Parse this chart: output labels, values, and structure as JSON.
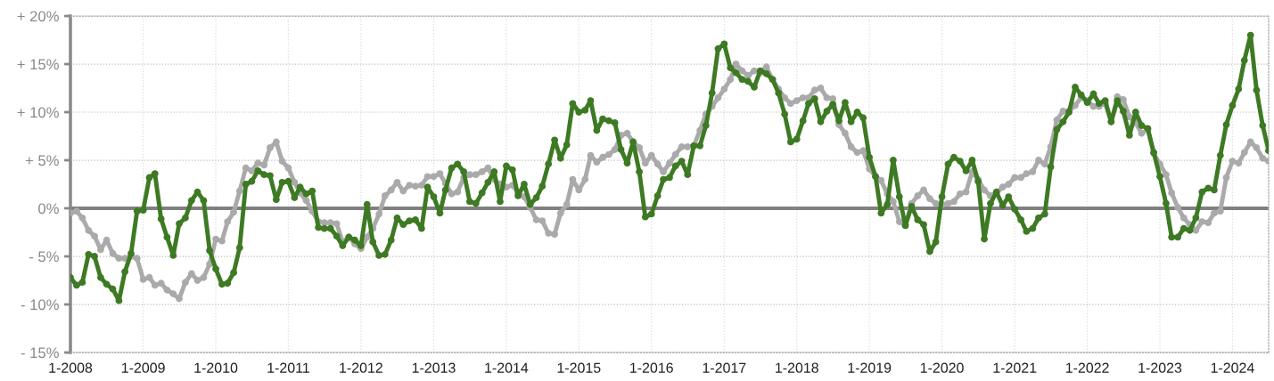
{
  "chart_data": {
    "type": "line",
    "x": [
      "2008-01",
      "2008-02",
      "2008-03",
      "2008-04",
      "2008-05",
      "2008-06",
      "2008-07",
      "2008-08",
      "2008-09",
      "2008-10",
      "2008-11",
      "2008-12",
      "2009-01",
      "2009-02",
      "2009-03",
      "2009-04",
      "2009-05",
      "2009-06",
      "2009-07",
      "2009-08",
      "2009-09",
      "2009-10",
      "2009-11",
      "2009-12",
      "2010-01",
      "2010-02",
      "2010-03",
      "2010-04",
      "2010-05",
      "2010-06",
      "2010-07",
      "2010-08",
      "2010-09",
      "2010-10",
      "2010-11",
      "2010-12",
      "2011-01",
      "2011-02",
      "2011-03",
      "2011-04",
      "2011-05",
      "2011-06",
      "2011-07",
      "2011-08",
      "2011-09",
      "2011-10",
      "2011-11",
      "2011-12",
      "2012-01",
      "2012-02",
      "2012-03",
      "2012-04",
      "2012-05",
      "2012-06",
      "2012-07",
      "2012-08",
      "2012-09",
      "2012-10",
      "2012-11",
      "2012-12",
      "2013-01",
      "2013-02",
      "2013-03",
      "2013-04",
      "2013-05",
      "2013-06",
      "2013-07",
      "2013-08",
      "2013-09",
      "2013-10",
      "2013-11",
      "2013-12",
      "2014-01",
      "2014-02",
      "2014-03",
      "2014-04",
      "2014-05",
      "2014-06",
      "2014-07",
      "2014-08",
      "2014-09",
      "2014-10",
      "2014-11",
      "2014-12",
      "2015-01",
      "2015-02",
      "2015-03",
      "2015-04",
      "2015-05",
      "2015-06",
      "2015-07",
      "2015-08",
      "2015-09",
      "2015-10",
      "2015-11",
      "2015-12",
      "2016-01",
      "2016-02",
      "2016-03",
      "2016-04",
      "2016-05",
      "2016-06",
      "2016-07",
      "2016-08",
      "2016-09",
      "2016-10",
      "2016-11",
      "2016-12",
      "2017-01",
      "2017-02",
      "2017-03",
      "2017-04",
      "2017-05",
      "2017-06",
      "2017-07",
      "2017-08",
      "2017-09",
      "2017-10",
      "2017-11",
      "2017-12",
      "2018-01",
      "2018-02",
      "2018-03",
      "2018-04",
      "2018-05",
      "2018-06",
      "2018-07",
      "2018-08",
      "2018-09",
      "2018-10",
      "2018-11",
      "2018-12",
      "2019-01",
      "2019-02",
      "2019-03",
      "2019-04",
      "2019-05",
      "2019-06",
      "2019-07",
      "2019-08",
      "2019-09",
      "2019-10",
      "2019-11",
      "2019-12",
      "2020-01",
      "2020-02",
      "2020-03",
      "2020-04",
      "2020-05",
      "2020-06",
      "2020-07",
      "2020-08",
      "2020-09",
      "2020-10",
      "2020-11",
      "2020-12",
      "2021-01",
      "2021-02",
      "2021-03",
      "2021-04",
      "2021-05",
      "2021-06",
      "2021-07",
      "2021-08",
      "2021-09",
      "2021-10",
      "2021-11",
      "2021-12",
      "2022-01",
      "2022-02",
      "2022-03",
      "2022-04",
      "2022-05",
      "2022-06",
      "2022-07",
      "2022-08",
      "2022-09",
      "2022-10",
      "2022-11",
      "2022-12",
      "2023-01",
      "2023-02",
      "2023-03",
      "2023-04",
      "2023-05",
      "2023-06",
      "2023-07",
      "2023-08",
      "2023-09",
      "2023-10",
      "2023-11",
      "2023-12",
      "2024-01",
      "2024-02",
      "2024-03",
      "2024-04",
      "2024-05",
      "2024-06",
      "2024-07"
    ],
    "series": [
      {
        "color": "#aaaaaa",
        "values": [
          -0.5,
          -0.3,
          -1.0,
          -2.3,
          -2.9,
          -4.3,
          -3.3,
          -4.7,
          -5.2,
          -5.2,
          -5.0,
          -5.2,
          -7.4,
          -7.2,
          -8.0,
          -7.8,
          -8.5,
          -8.9,
          -9.4,
          -7.7,
          -6.8,
          -7.5,
          -7.2,
          -5.8,
          -3.2,
          -3.4,
          -1.4,
          -0.4,
          1.8,
          4.2,
          3.9,
          4.7,
          4.5,
          6.3,
          6.9,
          4.9,
          4.2,
          2.7,
          1.6,
          0.8,
          -0.3,
          -1.4,
          -1.5,
          -1.5,
          -1.6,
          -3.5,
          -3.0,
          -3.7,
          -4.2,
          -3.0,
          -2.1,
          -0.6,
          1.3,
          1.9,
          2.7,
          1.8,
          2.4,
          2.3,
          2.4,
          3.3,
          3.3,
          3.6,
          2.6,
          1.5,
          1.7,
          3.2,
          3.5,
          3.5,
          3.8,
          4.2,
          3.0,
          2.5,
          2.2,
          2.4,
          1.6,
          1.2,
          0.1,
          -1.2,
          -1.3,
          -2.6,
          -2.7,
          -0.5,
          0.4,
          3.0,
          1.9,
          3.0,
          5.5,
          4.8,
          5.3,
          5.6,
          6.1,
          7.6,
          7.8,
          6.9,
          6.3,
          4.7,
          5.5,
          4.6,
          3.8,
          4.7,
          5.6,
          6.4,
          6.4,
          6.5,
          8.1,
          9.8,
          10.6,
          11.5,
          12.4,
          13.4,
          15.0,
          14.3,
          13.8,
          14.3,
          14.1,
          14.7,
          13.4,
          12.4,
          11.5,
          10.9,
          11.2,
          11.5,
          11.5,
          12.3,
          12.5,
          11.5,
          11.4,
          8.7,
          7.8,
          6.4,
          5.8,
          6.0,
          4.1,
          3.3,
          2.9,
          1.5,
          0.7,
          -1.4,
          -1.7,
          0.5,
          1.3,
          1.9,
          1.0,
          0.5,
          0.4,
          0.5,
          0.7,
          1.5,
          1.7,
          3.8,
          3.0,
          1.9,
          1.3,
          1.6,
          2.2,
          2.5,
          3.2,
          3.2,
          3.6,
          3.8,
          5.0,
          4.6,
          6.4,
          9.2,
          10.1,
          10.1,
          10.7,
          11.5,
          11.2,
          10.6,
          10.6,
          10.9,
          9.0,
          11.6,
          11.3,
          9.5,
          8.9,
          7.8,
          8.2,
          5.7,
          4.6,
          3.5,
          1.6,
          0.1,
          -1.0,
          -1.7,
          -2.3,
          -1.4,
          -1.5,
          -0.5,
          -0.3,
          3.2,
          4.9,
          4.7,
          5.8,
          6.9,
          6.3,
          5.2,
          4.9
        ]
      },
      {
        "color": "#3d7a23",
        "values": [
          -7.2,
          -8.0,
          -7.7,
          -4.8,
          -5.0,
          -7.2,
          -7.9,
          -8.4,
          -9.6,
          -6.6,
          -4.7,
          -0.3,
          -0.2,
          3.2,
          3.6,
          -1.1,
          -3.0,
          -4.9,
          -1.6,
          -1.0,
          0.8,
          1.7,
          0.8,
          -4.4,
          -6.3,
          -7.9,
          -7.8,
          -6.7,
          -4.1,
          2.5,
          2.8,
          3.9,
          3.5,
          3.4,
          0.9,
          2.7,
          2.8,
          1.1,
          2.2,
          1.5,
          1.8,
          -2.0,
          -2.1,
          -2.1,
          -2.9,
          -3.9,
          -3.0,
          -3.3,
          -3.9,
          0.4,
          -3.5,
          -4.9,
          -4.8,
          -3.3,
          -1.0,
          -1.7,
          -1.3,
          -1.2,
          -2.1,
          2.2,
          1.2,
          -0.5,
          1.9,
          4.2,
          4.6,
          3.8,
          0.7,
          0.5,
          1.6,
          2.7,
          3.8,
          0.7,
          4.4,
          4.0,
          1.3,
          2.5,
          0.4,
          1.1,
          2.3,
          4.6,
          7.1,
          5.2,
          6.6,
          10.9,
          10.0,
          10.2,
          11.2,
          8.1,
          9.3,
          9.1,
          8.9,
          6.1,
          4.7,
          6.9,
          3.8,
          -0.9,
          -0.6,
          1.3,
          3.0,
          3.2,
          4.4,
          4.9,
          3.5,
          6.5,
          6.5,
          8.6,
          12.0,
          16.6,
          17.1,
          14.6,
          14.1,
          13.4,
          13.2,
          12.6,
          14.3,
          14.0,
          13.4,
          12.0,
          9.8,
          6.9,
          7.2,
          9.1,
          10.9,
          11.4,
          9.0,
          10.1,
          10.8,
          9.1,
          11.0,
          9.0,
          10.0,
          9.4,
          5.3,
          3.3,
          -0.5,
          0.4,
          5.0,
          1.2,
          -1.8,
          0.2,
          -1.2,
          -1.7,
          -4.5,
          -3.5,
          1.2,
          4.6,
          5.3,
          4.9,
          3.9,
          5.0,
          2.8,
          -3.2,
          0.5,
          1.7,
          0.3,
          1.2,
          -0.1,
          -1.2,
          -2.4,
          -2.1,
          -1.0,
          -0.6,
          4.3,
          8.2,
          9.0,
          10.0,
          12.6,
          11.8,
          11.0,
          11.9,
          10.9,
          11.2,
          9.0,
          11.2,
          10.1,
          7.6,
          10.0,
          8.6,
          8.3,
          5.8,
          3.3,
          0.5,
          -3.0,
          -3.0,
          -2.1,
          -2.3,
          -1.0,
          1.7,
          2.1,
          1.9,
          5.5,
          8.7,
          10.7,
          12.4,
          15.4,
          18.0,
          12.3,
          8.6,
          6.0
        ]
      }
    ],
    "xlim": [
      "2008-01",
      "2024-07"
    ],
    "xticks": [
      {
        "value": "2008-01",
        "label": "1-2008"
      },
      {
        "value": "2009-01",
        "label": "1-2009"
      },
      {
        "value": "2010-01",
        "label": "1-2010"
      },
      {
        "value": "2011-01",
        "label": "1-2011"
      },
      {
        "value": "2012-01",
        "label": "1-2012"
      },
      {
        "value": "2013-01",
        "label": "1-2013"
      },
      {
        "value": "2014-01",
        "label": "1-2014"
      },
      {
        "value": "2015-01",
        "label": "1-2015"
      },
      {
        "value": "2016-01",
        "label": "1-2016"
      },
      {
        "value": "2017-01",
        "label": "1-2017"
      },
      {
        "value": "2018-01",
        "label": "1-2018"
      },
      {
        "value": "2019-01",
        "label": "1-2019"
      },
      {
        "value": "2020-01",
        "label": "1-2020"
      },
      {
        "value": "2021-01",
        "label": "1-2021"
      },
      {
        "value": "2022-01",
        "label": "1-2022"
      },
      {
        "value": "2023-01",
        "label": "1-2023"
      },
      {
        "value": "2024-01",
        "label": "1-2024"
      }
    ],
    "ylim": [
      -15,
      20
    ],
    "yticks": [
      {
        "value": -15,
        "label": "- 15%"
      },
      {
        "value": -10,
        "label": "- 10%"
      },
      {
        "value": -5,
        "label": "- 5%"
      },
      {
        "value": 0,
        "label": "0%"
      },
      {
        "value": 5,
        "label": "+ 5%"
      },
      {
        "value": 10,
        "label": "+ 10%"
      },
      {
        "value": 15,
        "label": "+ 15%"
      },
      {
        "value": 20,
        "label": "+ 20%"
      }
    ],
    "ref_lines": [
      {
        "axis": "y",
        "value": 0,
        "color": "#808080"
      }
    ],
    "grid": true,
    "marker": "circle",
    "line_style": "solid"
  }
}
